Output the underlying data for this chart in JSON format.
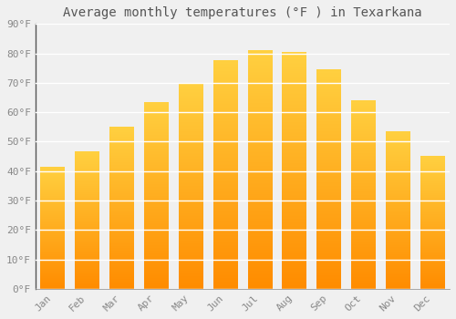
{
  "title": "Average monthly temperatures (°F ) in Texarkana",
  "months": [
    "Jan",
    "Feb",
    "Mar",
    "Apr",
    "May",
    "Jun",
    "Jul",
    "Aug",
    "Sep",
    "Oct",
    "Nov",
    "Dec"
  ],
  "values": [
    41.5,
    46.5,
    55.0,
    63.5,
    70.0,
    77.5,
    81.0,
    80.5,
    74.5,
    64.0,
    53.5,
    45.0
  ],
  "bar_color_bottom": "#FF8C00",
  "bar_color_top": "#FFD040",
  "ylim": [
    0,
    90
  ],
  "yticks": [
    0,
    10,
    20,
    30,
    40,
    50,
    60,
    70,
    80,
    90
  ],
  "ytick_labels": [
    "0°F",
    "10°F",
    "20°F",
    "30°F",
    "40°F",
    "50°F",
    "60°F",
    "70°F",
    "80°F",
    "90°F"
  ],
  "bg_color": "#f0f0f0",
  "grid_color": "#ffffff",
  "title_fontsize": 10,
  "tick_fontsize": 8,
  "bar_width": 0.7,
  "left_spine_color": "#555555"
}
